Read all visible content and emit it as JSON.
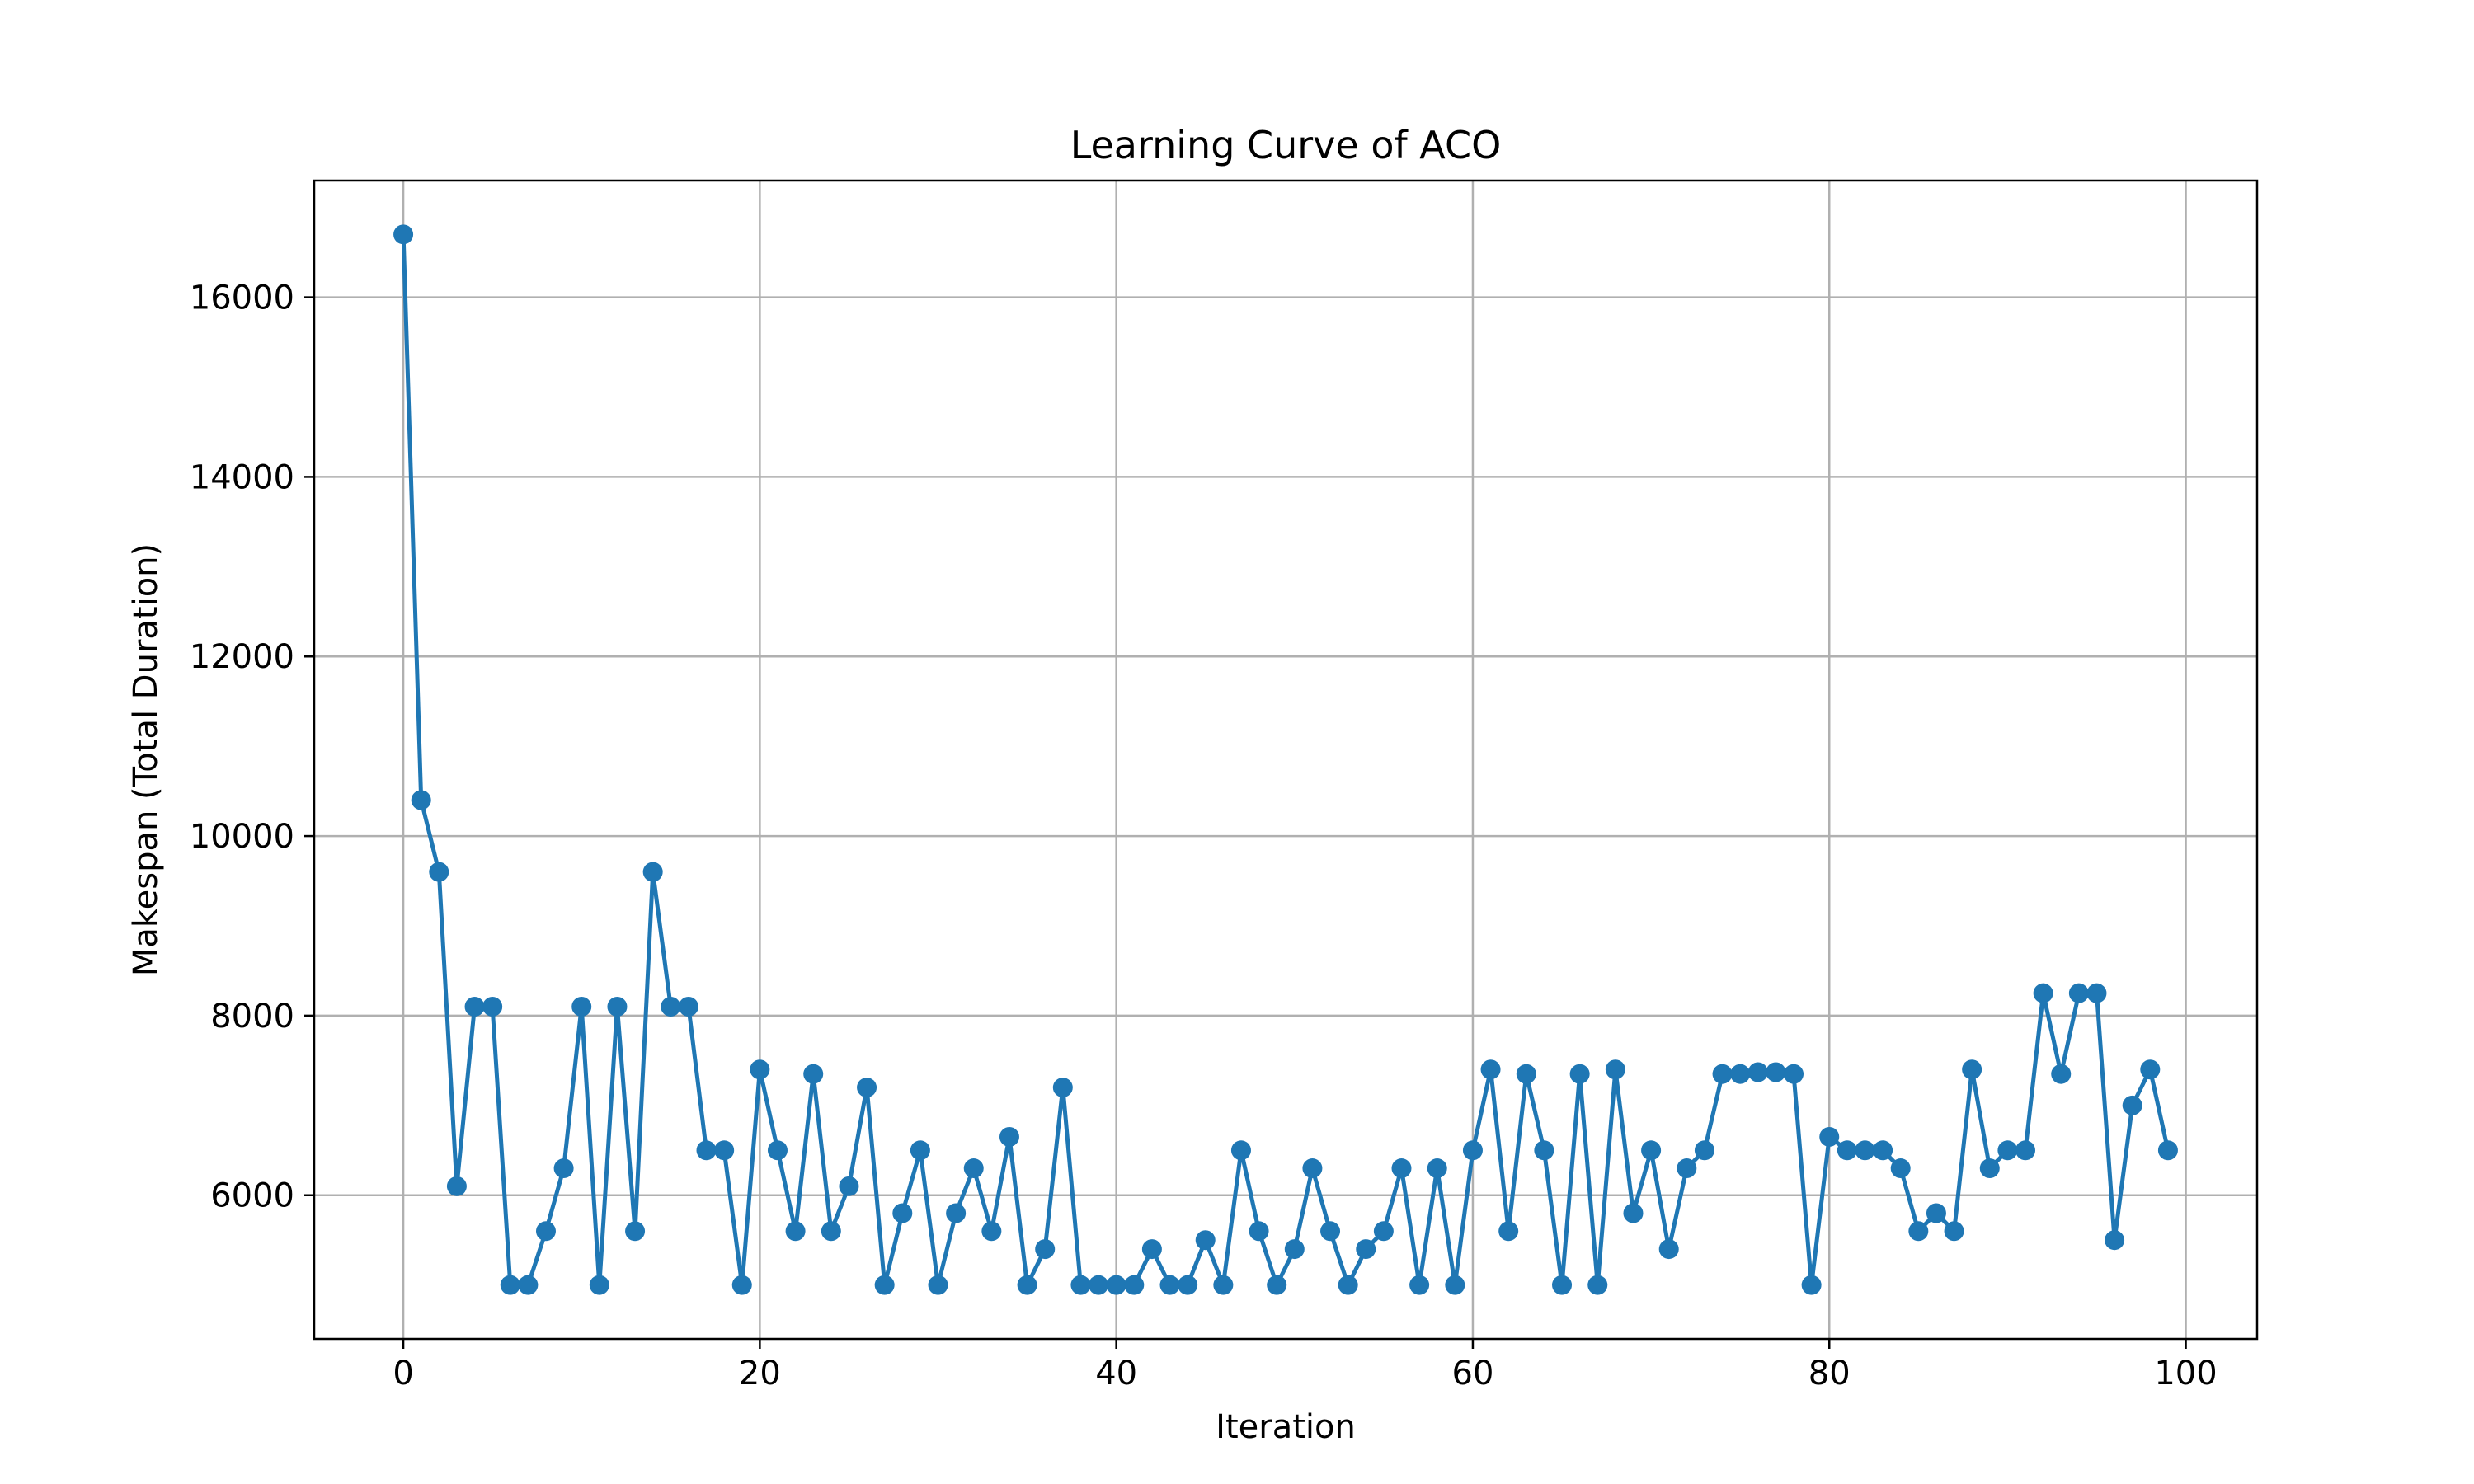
{
  "chart_data": {
    "type": "line",
    "title": "Learning Curve of ACO",
    "xlabel": "Iteration",
    "ylabel": "Makespan (Total Duration)",
    "xlim": [
      -5,
      104
    ],
    "ylim": [
      4400,
      17300
    ],
    "xticks": [
      0,
      20,
      40,
      60,
      80,
      100
    ],
    "yticks": [
      6000,
      8000,
      10000,
      12000,
      14000,
      16000
    ],
    "grid": true,
    "marker": "circle",
    "series": [
      {
        "color": "#1f77b4",
        "x": [
          0,
          1,
          2,
          3,
          4,
          5,
          6,
          7,
          8,
          9,
          10,
          11,
          12,
          13,
          14,
          15,
          16,
          17,
          18,
          19,
          20,
          21,
          22,
          23,
          24,
          25,
          26,
          27,
          28,
          29,
          30,
          31,
          32,
          33,
          34,
          35,
          36,
          37,
          38,
          39,
          40,
          41,
          42,
          43,
          44,
          45,
          46,
          47,
          48,
          49,
          50,
          51,
          52,
          53,
          54,
          55,
          56,
          57,
          58,
          59,
          60,
          61,
          62,
          63,
          64,
          65,
          66,
          67,
          68,
          69,
          70,
          71,
          72,
          73,
          74,
          75,
          76,
          77,
          78,
          79,
          80,
          81,
          82,
          83,
          84,
          85,
          86,
          87,
          88,
          89,
          90,
          91,
          92,
          93,
          94,
          95,
          96,
          97,
          98,
          99
        ],
        "y": [
          16700,
          10400,
          9600,
          6100,
          8100,
          8100,
          5000,
          5000,
          5600,
          6300,
          8100,
          5000,
          8100,
          5600,
          9600,
          8100,
          8100,
          6500,
          6500,
          5000,
          7400,
          6500,
          5600,
          7350,
          5600,
          6100,
          7200,
          5000,
          5800,
          6500,
          5000,
          5800,
          6300,
          5600,
          6650,
          5000,
          5400,
          7200,
          5000,
          5000,
          5000,
          5000,
          5400,
          5000,
          5000,
          5500,
          5000,
          6500,
          5600,
          5000,
          5400,
          6300,
          5600,
          5000,
          5400,
          5600,
          6300,
          5000,
          6300,
          5000,
          6500,
          7400,
          5600,
          7350,
          6500,
          5000,
          7350,
          5000,
          7400,
          5800,
          6500,
          5400,
          6300,
          6500,
          7350,
          7350,
          7370,
          7370,
          7350,
          5000,
          6650,
          6500,
          6500,
          6500,
          6300,
          5600,
          5800,
          5600,
          7400,
          6300,
          6500,
          6500,
          8250,
          7350,
          8250,
          8250,
          5500,
          7000,
          7400,
          6500
        ]
      }
    ]
  }
}
